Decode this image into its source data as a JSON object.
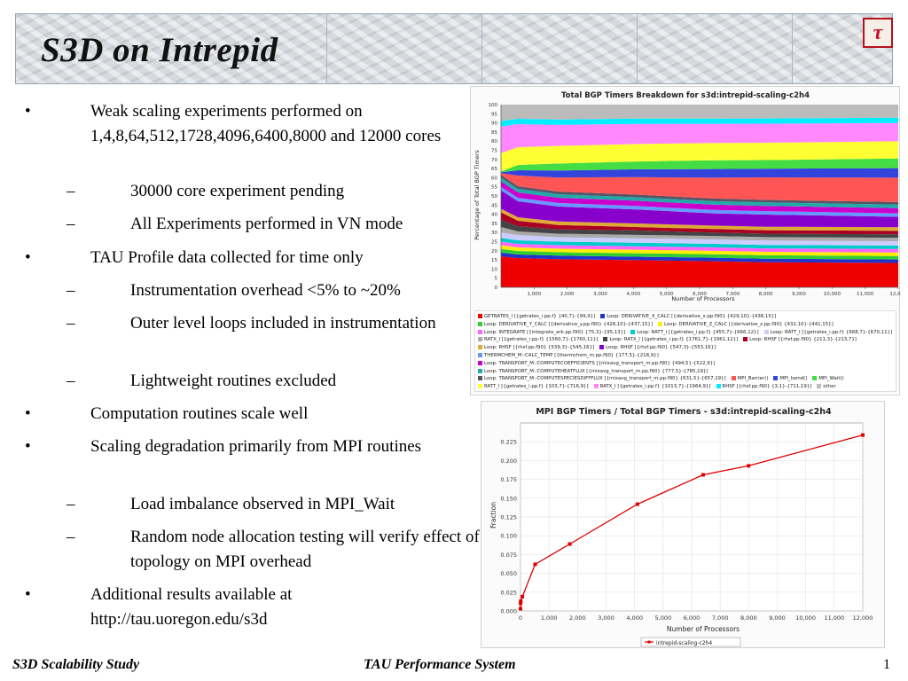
{
  "slide": {
    "title": "S3D on Intrepid",
    "logo_glyph": "τ",
    "footer_left": "S3D Scalability Study",
    "footer_center": "TAU Performance System",
    "page_number": "1"
  },
  "bullets": [
    {
      "level": 1,
      "marker": "•",
      "text": "Weak scaling experiments performed on 1,4,8,64,512,1728,4096,6400,8000 and 12000 cores"
    },
    {
      "level": 2,
      "marker": "–",
      "text": "30000 core experiment pending"
    },
    {
      "level": 2,
      "marker": "–",
      "text": "All Experiments performed in VN mode"
    },
    {
      "level": 1,
      "marker": "•",
      "text": "TAU Profile data collected for time only"
    },
    {
      "level": 2,
      "marker": "–",
      "text": "Instrumentation overhead <5% to ~20%"
    },
    {
      "level": 2,
      "marker": "–",
      "text": "Outer level loops included in instrumentation"
    },
    {
      "level": 2,
      "marker": "–",
      "text": "Lightweight routines excluded"
    },
    {
      "level": 1,
      "marker": "•",
      "text": "Computation routines scale well"
    },
    {
      "level": 1,
      "marker": "•",
      "text": "Scaling degradation primarily from MPI routines"
    },
    {
      "level": 2,
      "marker": "–",
      "text": "Load imbalance observed in MPI_Wait"
    },
    {
      "level": 2,
      "marker": "–",
      "text": "Random node allocation testing will verify effect of topology on MPI overhead"
    },
    {
      "level": 1,
      "marker": "•",
      "text": "Additional results available at http://tau.uoregon.edu/s3d"
    }
  ],
  "chart_data": [
    {
      "type": "area",
      "title": "Total BGP Timers Breakdown for s3d:intrepid-scaling-c2h4",
      "xlabel": "Number of Processors",
      "ylabel": "Percentage of Total BGP Timers",
      "xlim": [
        0,
        12000
      ],
      "ylim": [
        0,
        100
      ],
      "x_ticks": [
        "1,000",
        "2,000",
        "3,000",
        "4,000",
        "5,000",
        "6,000",
        "7,000",
        "8,000",
        "9,000",
        "10,000",
        "11,000",
        "12,000"
      ],
      "y_ticks": [
        "0",
        "5",
        "10",
        "15",
        "20",
        "25",
        "30",
        "35",
        "40",
        "45",
        "50",
        "55",
        "60",
        "65",
        "70",
        "75",
        "80",
        "85",
        "90",
        "95",
        "100"
      ],
      "x": [
        1,
        512,
        1728,
        4096,
        6400,
        8000,
        12000
      ],
      "series": [
        {
          "name": "GETRATES_I [{getrates_i.pp.f} {40,7}-{99,9}]",
          "color": "#ee0000",
          "values": [
            17,
            16.5,
            16,
            15.5,
            15,
            14.5,
            14
          ]
        },
        {
          "name": "Loop: DERIVATIVE_X_CALC [{derivative_x.pp.f90} {429,10}-{438,15}]",
          "color": "#2233cc",
          "values": [
            2,
            2,
            2,
            2,
            2,
            2,
            2
          ]
        },
        {
          "name": "Loop: DERIVATIVE_Y_CALC [{derivative_y.pp.f90} {428,10}-{437,15}]",
          "color": "#33cc33",
          "values": [
            2,
            2,
            2,
            2,
            2,
            2,
            2
          ]
        },
        {
          "name": "Loop: DERIVATIVE_Z_CALC [{derivative_z.pp.f90} {432,10}-{441,15}]",
          "color": "#ffee00",
          "values": [
            2,
            2,
            2,
            2,
            2,
            2,
            2
          ]
        },
        {
          "name": "Loop: INTEGRATE [{integrate_erk.pp.f90} {75,3}-{95,13}]",
          "color": "#ff66ff",
          "values": [
            2,
            2,
            2,
            2,
            2,
            2,
            2
          ]
        },
        {
          "name": "Loop: RATT_I [{getrates_i.pp.f} {455,7}-{666,12}]",
          "color": "#00cccc",
          "values": [
            2,
            2,
            2,
            2,
            2,
            2,
            2
          ]
        },
        {
          "name": "Loop: RATT_I [{getrates_i.pp.f} {668,7}-{670,11}]",
          "color": "#ccccff",
          "values": [
            3,
            3,
            2.5,
            2.5,
            2.5,
            2.5,
            2.5
          ]
        },
        {
          "name": "RATX_I [{getrates_i.pp.f} {1560,7}-{1760,11}]",
          "color": "#aaaaaa",
          "values": [
            3,
            2,
            2,
            2,
            2,
            2,
            2
          ]
        },
        {
          "name": "Loop: RATX_I [{getrates_i.pp.f} {1761,7}-{1961,12}]",
          "color": "#444444",
          "values": [
            4,
            3,
            2.5,
            2.5,
            2,
            2,
            2
          ]
        },
        {
          "name": "Loop: RHSF [{rhsf.pp.f90} {211,3}-{213,7}]",
          "color": "#aa0022",
          "values": [
            4,
            3,
            2.5,
            2,
            2,
            2,
            2
          ]
        },
        {
          "name": "Loop: RHSF [{rhsf.pp.f90} {539,3}-{545,16}]",
          "color": "#ddaa33",
          "values": [
            2,
            2,
            2,
            2,
            2,
            2,
            2
          ]
        },
        {
          "name": "Loop: RHSF [{rhsf.pp.f90} {547,3}-{553,16}]",
          "color": "#8800cc",
          "values": [
            10,
            9,
            8.5,
            8,
            7,
            7,
            6
          ]
        },
        {
          "name": "THERMCHEM_M::CALC_TEMP [{thermchem_m.pp.f90} {177,5}-{218,9}]",
          "color": "#6699ff",
          "values": [
            2,
            2,
            2,
            2,
            2,
            2,
            2
          ]
        },
        {
          "name": "Loop: TRANSPORT_M::COMPUTECOEFFICIENTS [{mixavg_transport_m.pp.f90} {494,5}-{522,9}]",
          "color": "#cc00cc",
          "values": [
            3,
            3,
            3,
            3,
            3,
            3,
            3
          ]
        },
        {
          "name": "Loop: TRANSPORT_M::COMPUTEHEATFLUX [{mixavg_transport_m.pp.f90} {777,5}-{785,19}]",
          "color": "#22aaaa",
          "values": [
            2,
            2,
            2,
            2,
            2,
            2,
            2
          ]
        },
        {
          "name": "Loop: TRANSPORT_M::COMPUTESPECIESDIFFFLUX [{mixavg_transport_m.pp.f90} {631,5}-{657,19}]",
          "color": "#555566",
          "values": [
            1.5,
            1.5,
            1.5,
            1.5,
            1.5,
            1.5,
            1.5
          ]
        },
        {
          "name": "MPI_Barrier()",
          "color": "#ff5555",
          "values": [
            1,
            6,
            8,
            10,
            12,
            13,
            14
          ]
        },
        {
          "name": "MPI_Isend()",
          "color": "#3344dd",
          "values": [
            0.5,
            3,
            4,
            4.5,
            5,
            5,
            5.5
          ]
        },
        {
          "name": "MPI_Wait()",
          "color": "#44dd44",
          "values": [
            0.5,
            3,
            4,
            4.5,
            5,
            5,
            5.5
          ]
        },
        {
          "name": "RATT_I [{getrates_i.pp.f} {103,7}-{716,9}]",
          "color": "#ffff33",
          "values": [
            10,
            10,
            10,
            10,
            10,
            10,
            10
          ]
        },
        {
          "name": "RATX_I [{getrates_i.pp.f} {1013,7}-{1964,9}]",
          "color": "#ff88ff",
          "values": [
            14.5,
            13,
            12,
            11.5,
            11,
            11,
            10.5
          ]
        },
        {
          "name": "RHSF [{rhsf.pp.f90} {3,1}-{711,19}]",
          "color": "#00eeff",
          "values": [
            3,
            3,
            3,
            3,
            3,
            3,
            3
          ]
        },
        {
          "name": "other",
          "color": "#bbbbbb",
          "values": [
            9,
            8,
            8.5,
            8,
            8,
            8,
            7.5
          ]
        }
      ],
      "grid": false,
      "legend": "bottom"
    },
    {
      "type": "line",
      "title": "MPI BGP Timers / Total BGP Timers - s3d:intrepid-scaling-c2h4",
      "xlabel": "Number of Processors",
      "ylabel": "Fraction",
      "xlim": [
        0,
        12000
      ],
      "ylim": [
        0,
        0.25
      ],
      "x_ticks": [
        "0",
        "1,000",
        "2,000",
        "3,000",
        "4,000",
        "5,000",
        "6,000",
        "7,000",
        "8,000",
        "9,000",
        "10,000",
        "11,000",
        "12,000"
      ],
      "y_ticks": [
        "0.000",
        "0.025",
        "0.050",
        "0.075",
        "0.100",
        "0.125",
        "0.150",
        "0.175",
        "0.200",
        "0.225"
      ],
      "series": [
        {
          "name": "intrepid-scaling-c2h4",
          "color": "#dd0000",
          "x": [
            1,
            4,
            8,
            64,
            512,
            1728,
            4096,
            6400,
            8000,
            12000
          ],
          "values": [
            0.003,
            0.01,
            0.013,
            0.019,
            0.062,
            0.089,
            0.142,
            0.181,
            0.193,
            0.234
          ]
        }
      ],
      "grid": true,
      "legend": "bottom"
    }
  ]
}
